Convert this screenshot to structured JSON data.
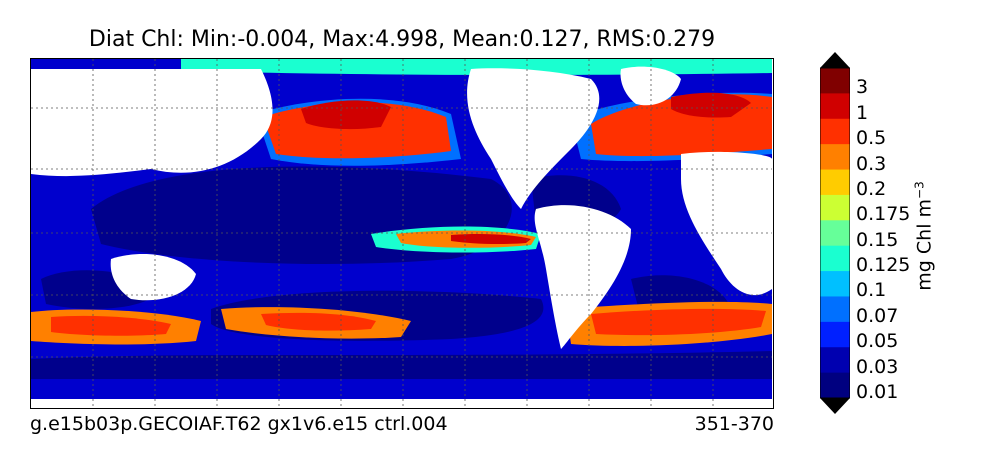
{
  "title": "Diat Chl: Min:-0.004, Max:4.998, Mean:0.127, RMS:0.279",
  "footer": {
    "case": "g.e15b03p.GECOIAF.T62 gx1v6.e15 ctrl.004",
    "years": "351-370"
  },
  "colorbar": {
    "unit_base": "mg Chl m",
    "unit_exp": "−3",
    "levels": [
      "3",
      "1",
      "0.5",
      "0.3",
      "0.2",
      "0.175",
      "0.15",
      "0.125",
      "0.1",
      "0.07",
      "0.05",
      "0.03",
      "0.01"
    ],
    "colors": [
      "#800000",
      "#d00000",
      "#ff3000",
      "#ff8000",
      "#ffcc00",
      "#ccff33",
      "#66ff99",
      "#1affd0",
      "#00c0ff",
      "#0070ff",
      "#0020ff",
      "#0000b0",
      "#000080"
    ],
    "over_color": "#000000",
    "under_color": "#000000"
  },
  "map": {
    "ocean_low_color": "#00008c",
    "ocean_mid_color": "#0000cd",
    "land_color": "#ffffff",
    "gridlines": true
  }
}
